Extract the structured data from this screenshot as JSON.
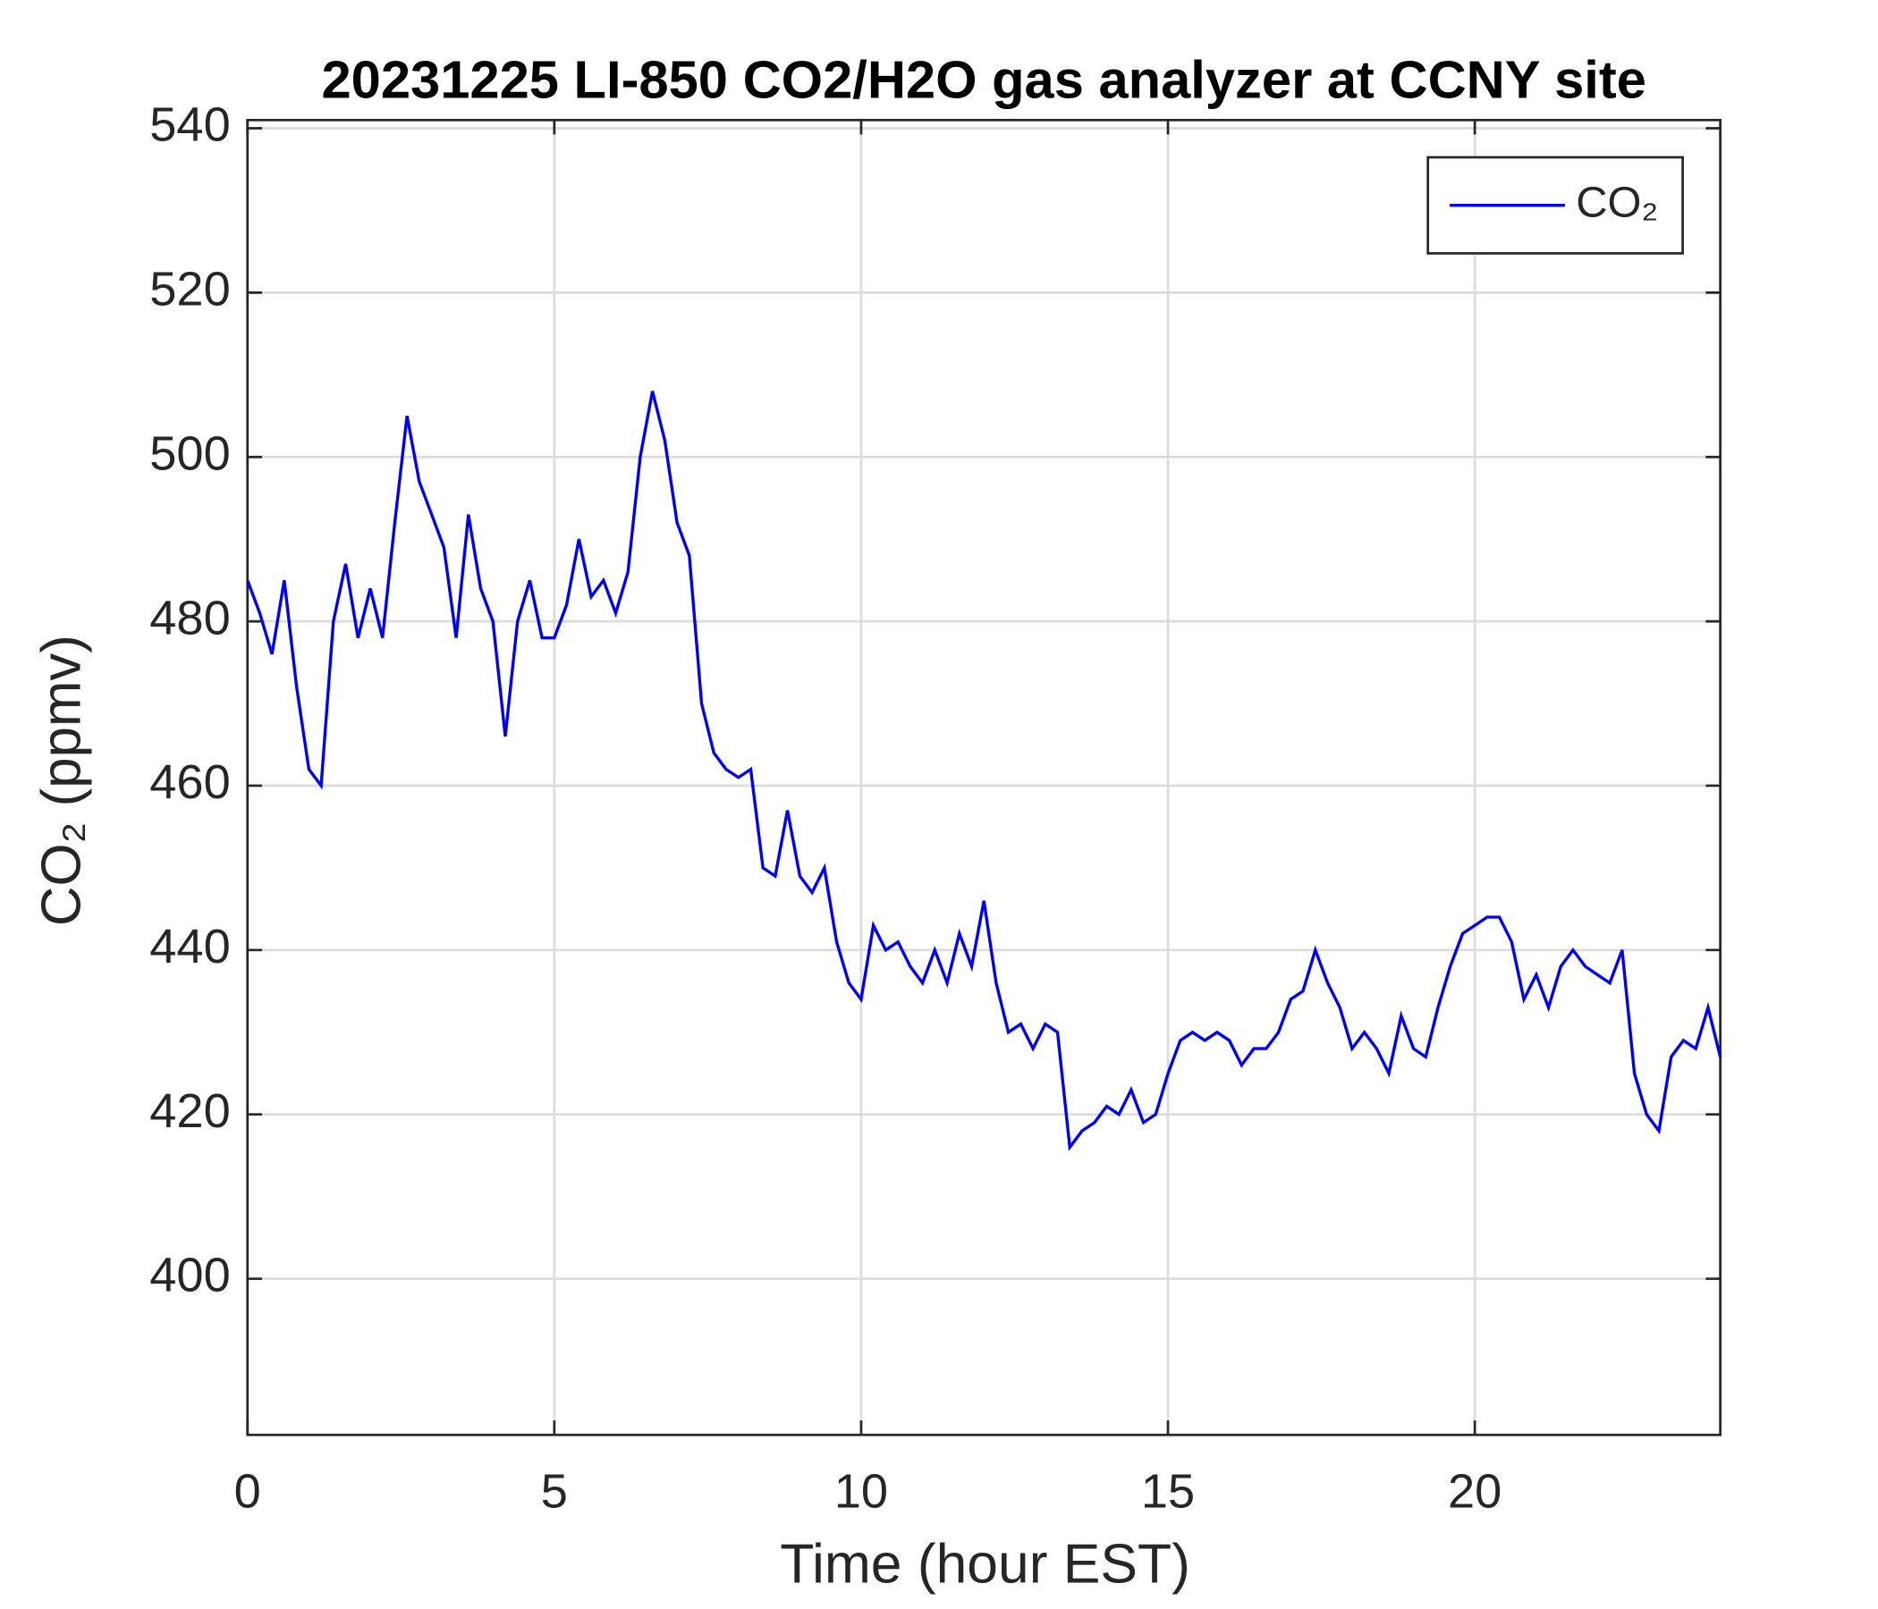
{
  "chart_data": {
    "type": "line",
    "title": "20231225 LI-850 CO2/H2O gas analyzer at CCNY site",
    "xlabel": "Time (hour EST)",
    "ylabel": "CO₂ (ppmv)",
    "x": [
      0,
      0.2,
      0.4,
      0.6,
      0.8,
      1,
      1.2,
      1.4,
      1.6,
      1.8,
      2,
      2.2,
      2.4,
      2.6,
      2.8,
      3,
      3.2,
      3.4,
      3.6,
      3.8,
      4,
      4.2,
      4.4,
      4.6,
      4.8,
      5,
      5.2,
      5.4,
      5.6,
      5.8,
      6,
      6.2,
      6.4,
      6.6,
      6.8,
      7,
      7.2,
      7.4,
      7.6,
      7.8,
      8,
      8.2,
      8.4,
      8.6,
      8.8,
      9,
      9.2,
      9.4,
      9.6,
      9.8,
      10,
      10.2,
      10.4,
      10.6,
      10.8,
      11,
      11.2,
      11.4,
      11.6,
      11.8,
      12,
      12.2,
      12.4,
      12.6,
      12.8,
      13,
      13.2,
      13.4,
      13.6,
      13.8,
      14,
      14.2,
      14.4,
      14.6,
      14.8,
      15,
      15.2,
      15.4,
      15.6,
      15.8,
      16,
      16.2,
      16.4,
      16.6,
      16.8,
      17,
      17.2,
      17.4,
      17.6,
      17.8,
      18,
      18.2,
      18.4,
      18.6,
      18.8,
      19,
      19.2,
      19.4,
      19.6,
      19.8,
      20,
      20.2,
      20.4,
      20.6,
      20.8,
      21,
      21.2,
      21.4,
      21.6,
      21.8,
      22,
      22.2,
      22.4,
      22.6,
      22.8,
      23,
      23.2,
      23.4,
      23.6,
      23.8,
      24
    ],
    "series": [
      {
        "name": "CO₂",
        "color": "#0000ff",
        "values": [
          485,
          481,
          476,
          485,
          472,
          462,
          460,
          480,
          487,
          478,
          484,
          478,
          492,
          505,
          497,
          493,
          489,
          478,
          493,
          484,
          480,
          466,
          480,
          485,
          478,
          478,
          482,
          490,
          483,
          485,
          481,
          486,
          500,
          508,
          502,
          492,
          488,
          470,
          464,
          462,
          461,
          462,
          450,
          449,
          457,
          449,
          447,
          450,
          441,
          436,
          434,
          443,
          440,
          441,
          438,
          436,
          440,
          436,
          442,
          438,
          446,
          436,
          430,
          431,
          428,
          431,
          430,
          416,
          418,
          419,
          421,
          420,
          423,
          419,
          420,
          425,
          429,
          430,
          429,
          430,
          429,
          426,
          428,
          428,
          430,
          434,
          435,
          440,
          436,
          433,
          428,
          430,
          428,
          425,
          432,
          428,
          427,
          433,
          438,
          442,
          443,
          444,
          444,
          441,
          434,
          437,
          433,
          438,
          440,
          438,
          437,
          436,
          440,
          425,
          420,
          418,
          427,
          429,
          428,
          433,
          427
        ]
      }
    ],
    "xlim": [
      0,
      24
    ],
    "xticks": [
      0,
      5,
      10,
      15,
      20
    ],
    "ylim": [
      381,
      541
    ],
    "yticks": [
      400,
      420,
      440,
      460,
      480,
      500,
      520,
      540
    ],
    "grid": true,
    "legend": "upper right"
  }
}
